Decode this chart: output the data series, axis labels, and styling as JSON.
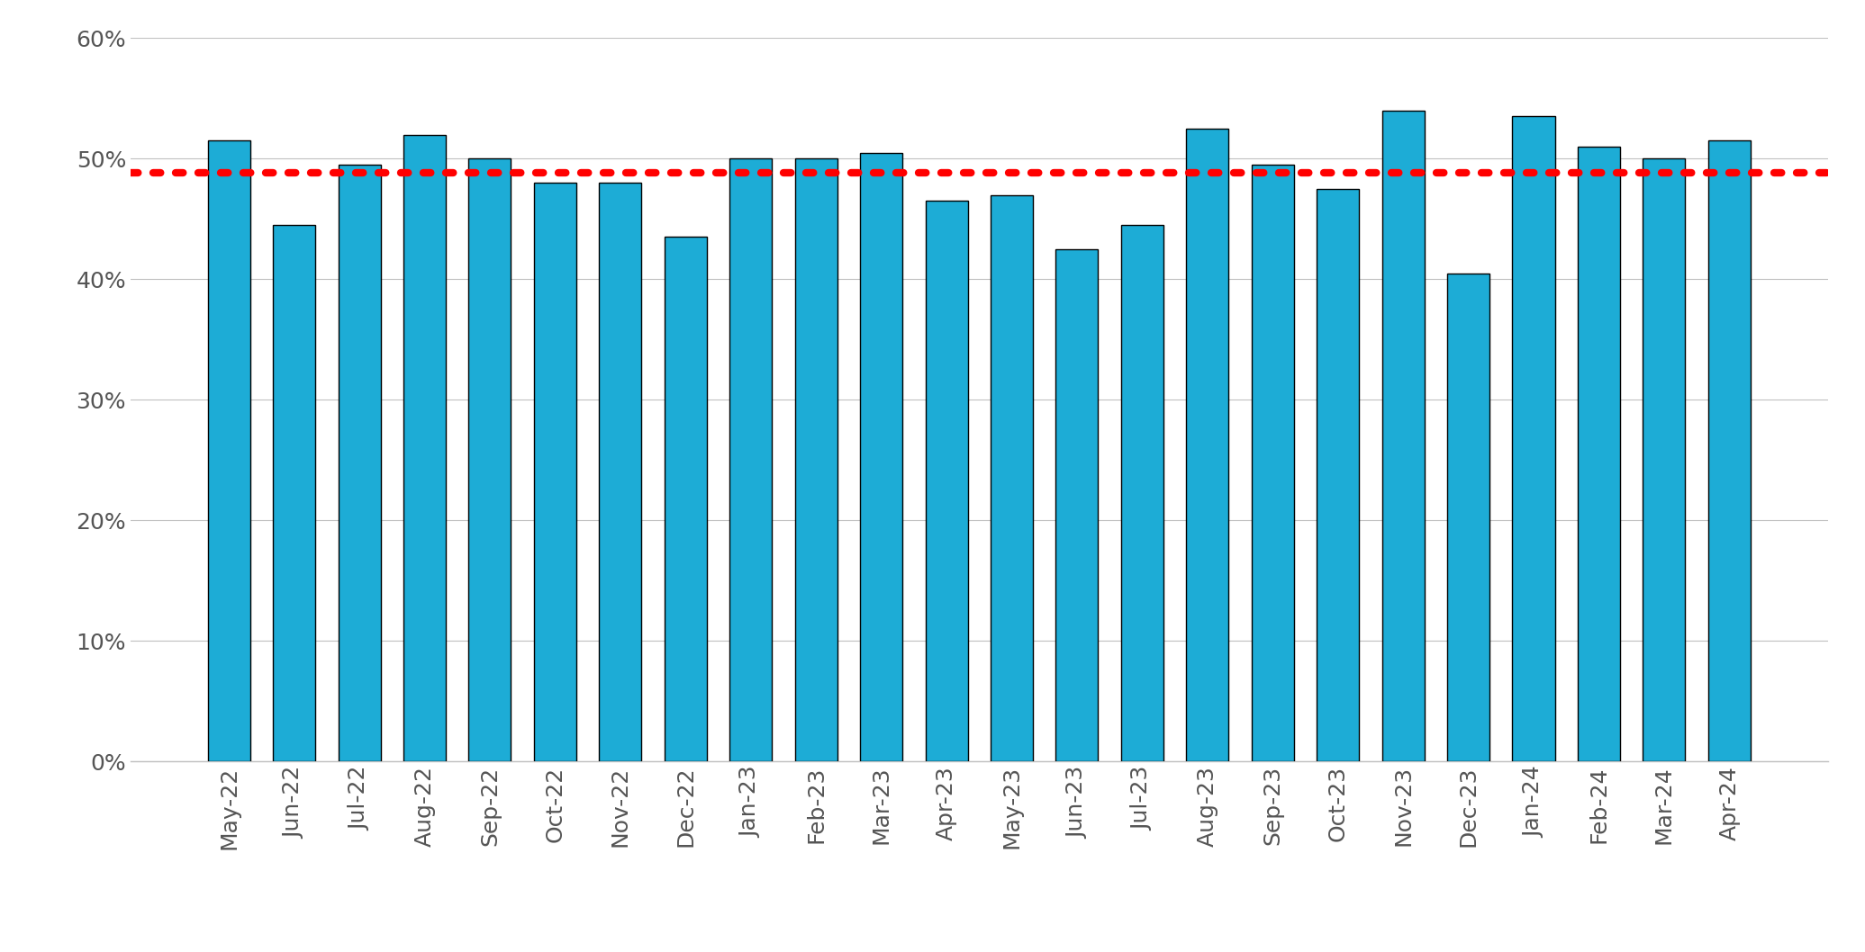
{
  "categories": [
    "May-22",
    "Jun-22",
    "Jul-22",
    "Aug-22",
    "Sep-22",
    "Oct-22",
    "Nov-22",
    "Dec-22",
    "Jan-23",
    "Feb-23",
    "Mar-23",
    "Apr-23",
    "May-23",
    "Jun-23",
    "Jul-23",
    "Aug-23",
    "Sep-23",
    "Oct-23",
    "Nov-23",
    "Dec-23",
    "Jan-24",
    "Feb-24",
    "Mar-24",
    "Apr-24"
  ],
  "values": [
    51.5,
    44.5,
    49.5,
    52.0,
    50.0,
    48.0,
    48.0,
    43.5,
    50.0,
    50.0,
    50.5,
    46.5,
    47.0,
    42.5,
    44.5,
    52.5,
    49.5,
    47.5,
    54.0,
    40.5,
    53.5,
    51.0,
    50.0,
    51.5
  ],
  "bar_color": "#1dacd6",
  "bar_edge_color": "#000000",
  "reference_line_value": 48.8,
  "reference_line_color": "#ff0000",
  "ylim": [
    0,
    60
  ],
  "yticks": [
    0,
    10,
    20,
    30,
    40,
    50,
    60
  ],
  "background_color": "#ffffff",
  "grid_color": "#c0c0c0",
  "tick_label_color": "#555555",
  "xlabel_fontsize": 18,
  "ylabel_fontsize": 18,
  "bar_width": 0.65
}
